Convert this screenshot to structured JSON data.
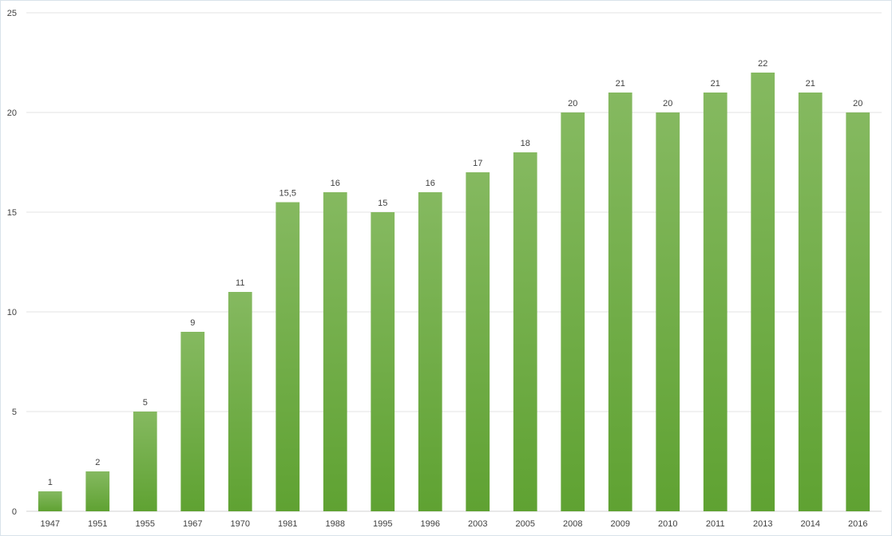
{
  "chart_data": {
    "type": "bar",
    "title": "",
    "xlabel": "",
    "ylabel": "",
    "categories": [
      "1947",
      "1951",
      "1955",
      "1967",
      "1970",
      "1981",
      "1988",
      "1995",
      "1996",
      "2003",
      "2005",
      "2008",
      "2009",
      "2010",
      "2011",
      "2013",
      "2014",
      "2016"
    ],
    "values": [
      1,
      2,
      5,
      9,
      11,
      15.5,
      16,
      15,
      16,
      17,
      18,
      20,
      21,
      20,
      21,
      22,
      21,
      20
    ],
    "data_labels": [
      "1",
      "2",
      "5",
      "9",
      "11",
      "15,5",
      "16",
      "15",
      "16",
      "17",
      "18",
      "20",
      "21",
      "20",
      "21",
      "22",
      "21",
      "20"
    ],
    "ylim": [
      0,
      25
    ],
    "yticks": [
      0,
      5,
      10,
      15,
      20,
      25
    ],
    "grid": true,
    "legend": "none",
    "colors": {
      "bar_top": "#85b960",
      "bar_bottom": "#5fa232",
      "grid": "#e3e3e3",
      "text": "#404040"
    }
  }
}
